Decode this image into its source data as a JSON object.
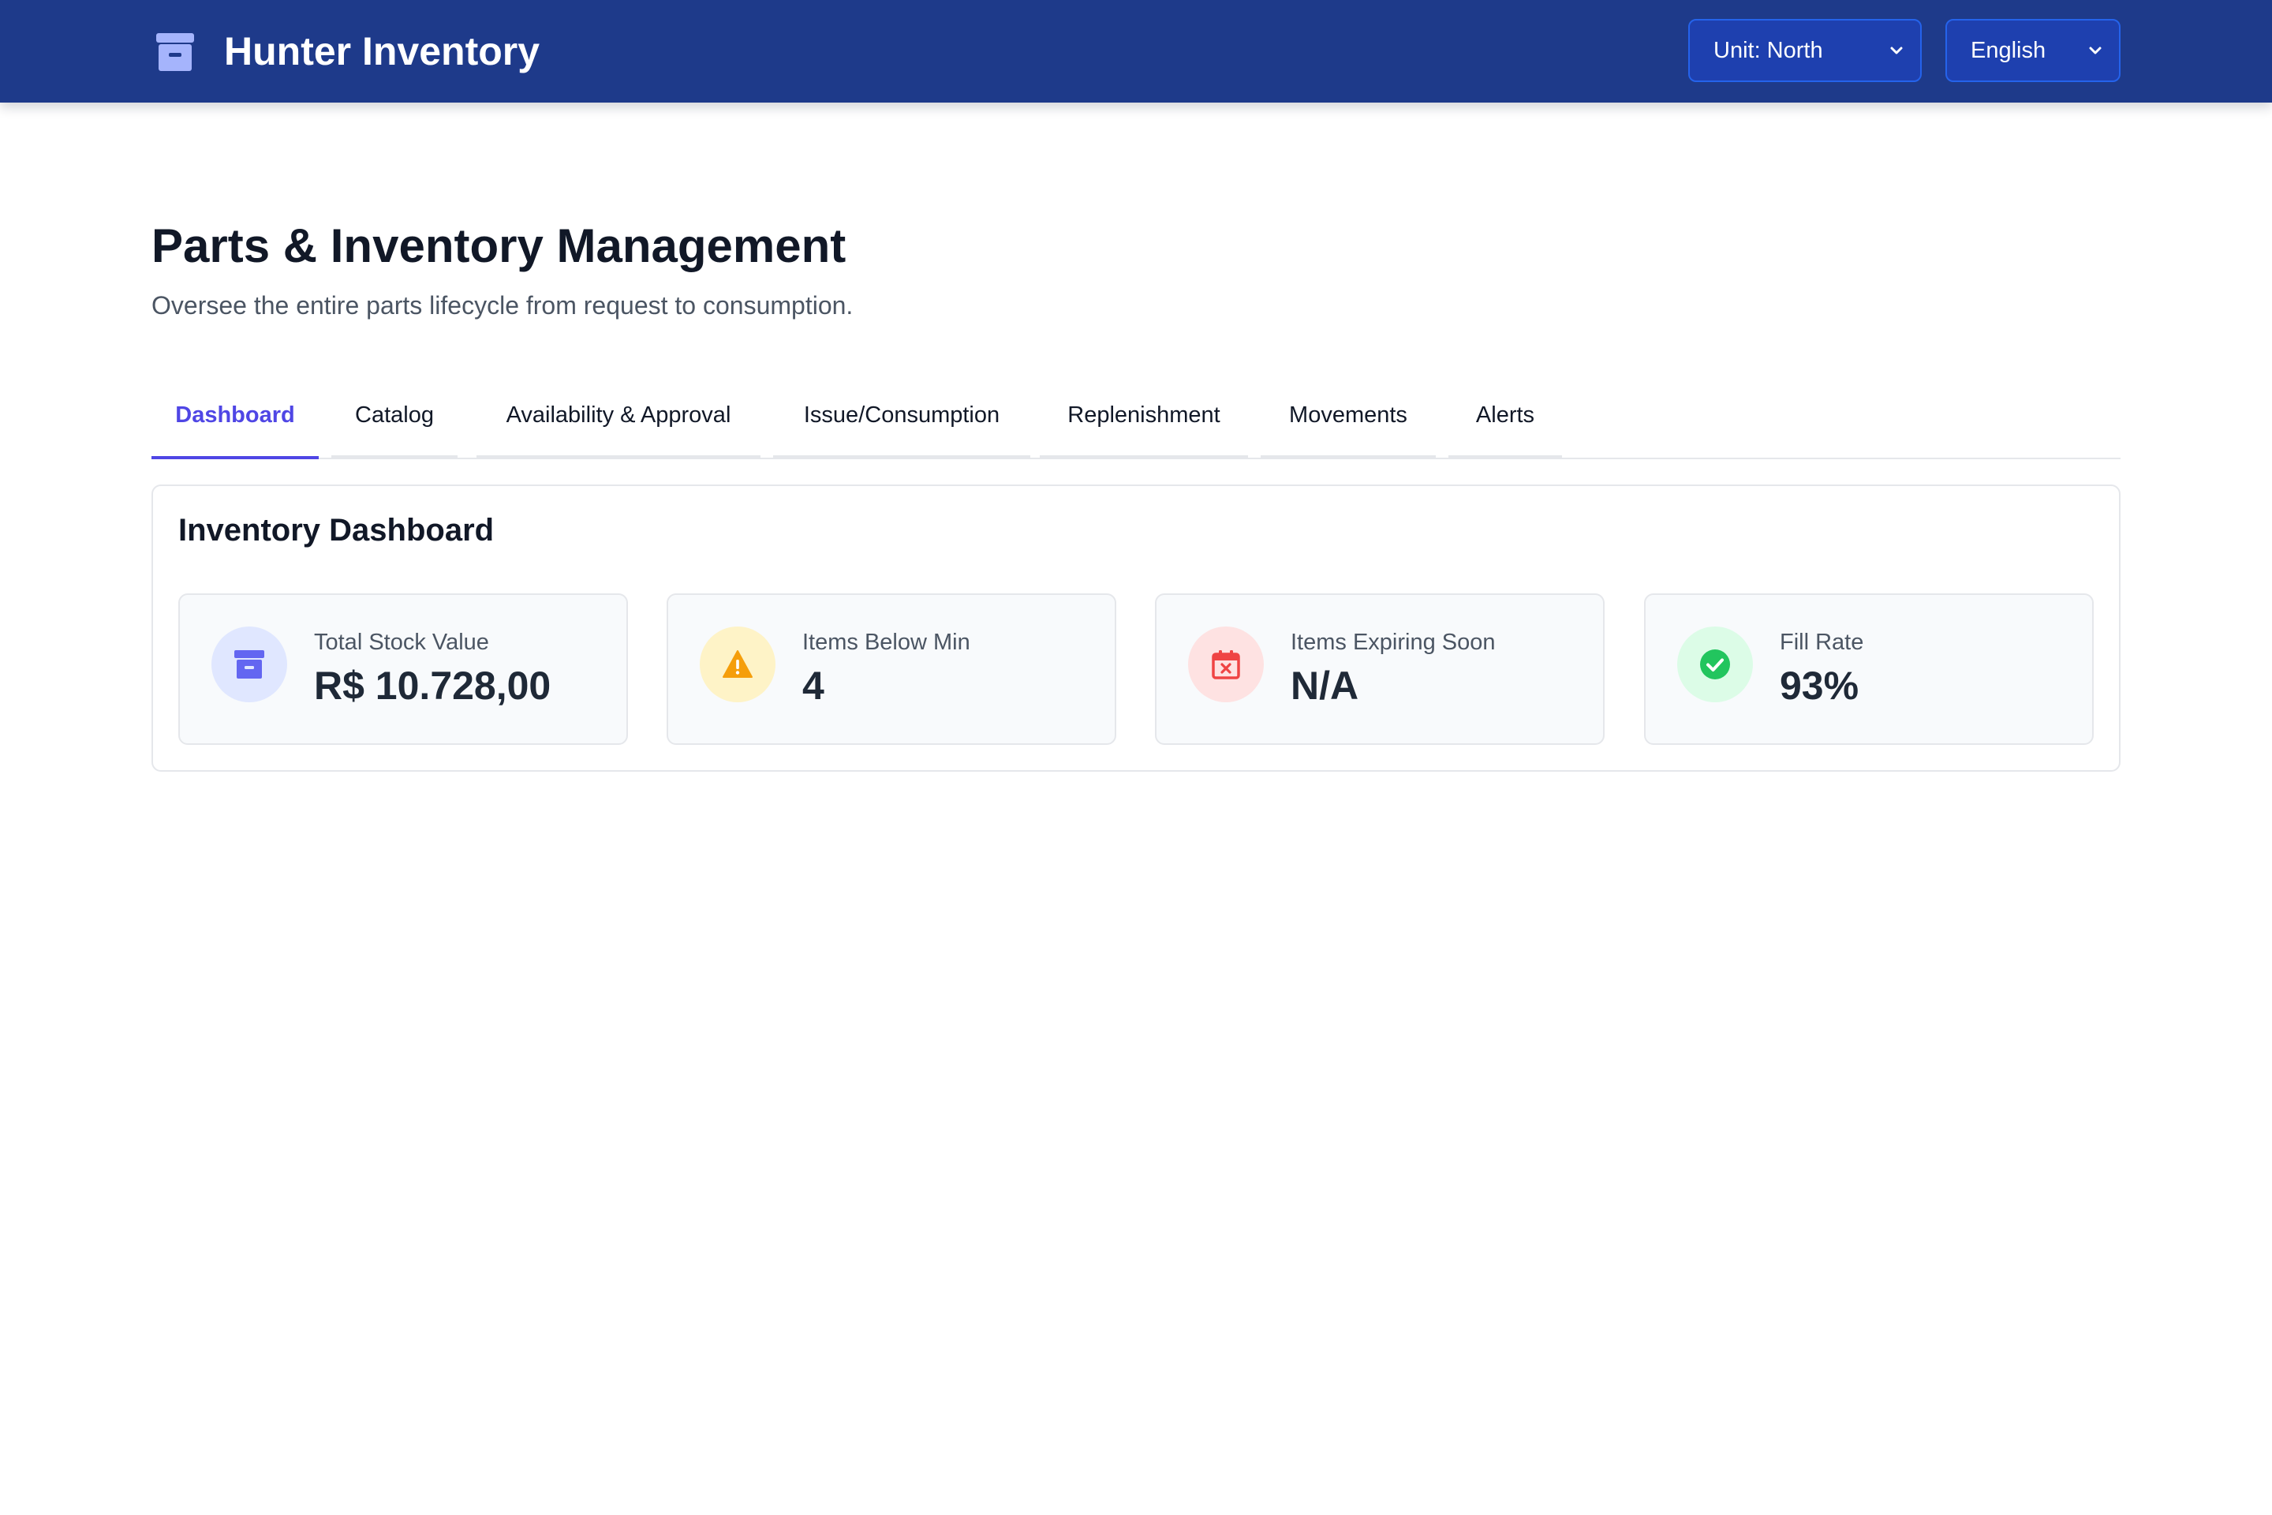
{
  "app": {
    "title": "Hunter Inventory",
    "icon": "archive-box-icon"
  },
  "header": {
    "unit_select": {
      "value": "Unit: North"
    },
    "language_select": {
      "value": "English"
    }
  },
  "page": {
    "title": "Parts & Inventory Management",
    "subtitle": "Oversee the entire parts lifecycle from request to consumption."
  },
  "tabs": [
    {
      "label": "Dashboard",
      "active": true
    },
    {
      "label": "Catalog"
    },
    {
      "label": "Availability & Approval"
    },
    {
      "label": "Issue/Consumption"
    },
    {
      "label": "Replenishment"
    },
    {
      "label": "Movements"
    },
    {
      "label": "Alerts"
    }
  ],
  "dashboard": {
    "title": "Inventory Dashboard",
    "cards": [
      {
        "label": "Total Stock Value",
        "value": "R$ 10.728,00",
        "icon": "archive-box-icon",
        "color": "#6366f1",
        "bg": "#e0e7ff"
      },
      {
        "label": "Items Below Min",
        "value": "4",
        "icon": "warning-triangle-icon",
        "color": "#f59e0b",
        "bg": "#fef3c7"
      },
      {
        "label": "Items Expiring Soon",
        "value": "N/A",
        "icon": "calendar-x-icon",
        "color": "#ef4444",
        "bg": "#fee2e2"
      },
      {
        "label": "Fill Rate",
        "value": "93%",
        "icon": "check-circle-icon",
        "color": "#22c55e",
        "bg": "#dcfce7"
      }
    ]
  },
  "colors": {
    "header_bg": "#1e3a8a",
    "accent": "#4f46e5"
  }
}
